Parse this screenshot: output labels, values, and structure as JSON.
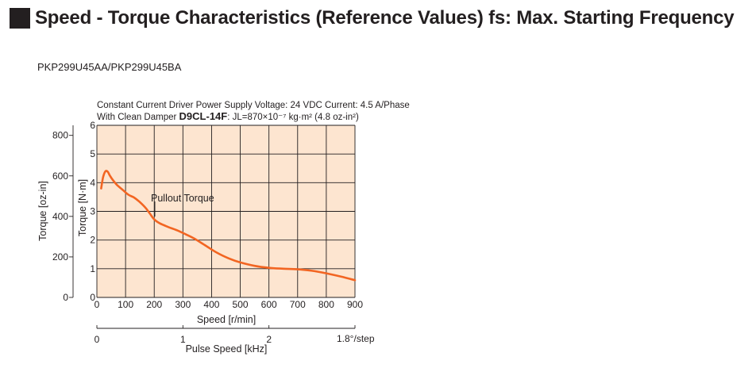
{
  "page": {
    "title": "Speed - Torque Characteristics (Reference Values) fs: Max. Starting Frequency",
    "model": "PKP299U45AA/PKP299U45BA"
  },
  "chart_data": {
    "type": "line",
    "conditions_line1": "Constant Current Driver  Power Supply Voltage: 24 VDC  Current: 4.5 A/Phase",
    "conditions_line2_prefix": "With Clean Damper ",
    "damper_model": "D9CL-14F",
    "conditions_line2_suffix": ": JL=870×10⁻⁷ kg·m² (4.8 oz-in²)",
    "annotation": "Pullout Torque",
    "xlabel": "Speed [r/min]",
    "xlim": [
      0,
      900
    ],
    "xticks": [
      "0",
      "100",
      "200",
      "300",
      "400",
      "500",
      "600",
      "700",
      "800",
      "900"
    ],
    "ylabel": "Torque [N·m]",
    "ylim": [
      0,
      6
    ],
    "yticks": [
      "0",
      "1",
      "2",
      "3",
      "4",
      "5",
      "6"
    ],
    "ylabel_secondary": "Torque [oz-in]",
    "yticks_secondary": [
      "0",
      "200",
      "400",
      "600",
      "800"
    ],
    "yticks_secondary_values": [
      0,
      200,
      400,
      600,
      800
    ],
    "x2label": "Pulse Speed [kHz]",
    "x2ticks": [
      "0",
      "1",
      "2"
    ],
    "x2ticks_values": [
      0,
      1,
      2
    ],
    "x2_unit_note": "1.8°/step",
    "grid": true,
    "colors": {
      "curve": "#f26522",
      "plot_bg": "#fde5d0",
      "grid": "#231f20"
    },
    "series": [
      {
        "name": "Pullout Torque",
        "x": [
          15,
          22,
          30,
          38,
          45,
          55,
          70,
          90,
          110,
          130,
          150,
          170,
          185,
          200,
          220,
          250,
          280,
          310,
          340,
          380,
          420,
          460,
          500,
          550,
          600,
          650,
          700,
          750,
          800,
          850,
          900
        ],
        "y": [
          3.8,
          4.2,
          4.4,
          4.38,
          4.25,
          4.1,
          3.92,
          3.75,
          3.58,
          3.48,
          3.32,
          3.12,
          2.92,
          2.72,
          2.58,
          2.45,
          2.34,
          2.2,
          2.05,
          1.8,
          1.55,
          1.36,
          1.22,
          1.1,
          1.03,
          1.0,
          0.98,
          0.93,
          0.84,
          0.73,
          0.6
        ]
      }
    ]
  }
}
